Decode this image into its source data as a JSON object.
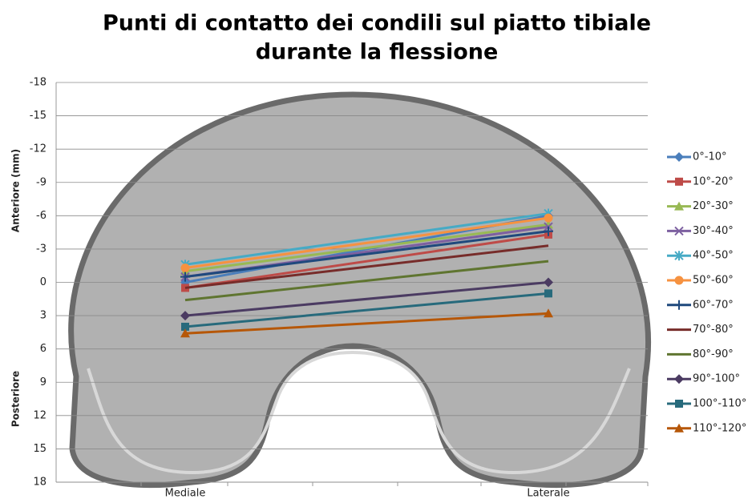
{
  "chart_data": {
    "type": "line",
    "title": [
      "Punti di contatto dei condili sul piatto tibiale",
      "durante la flessione"
    ],
    "y_label_upper": "Anteriore  (mm)",
    "y_label_lower": "Posteriore",
    "categories": [
      "Mediale",
      "Laterale"
    ],
    "ylim": [
      -18,
      18
    ],
    "y_inverted": true,
    "yticks": [
      -18,
      -15,
      -12,
      -9,
      -6,
      -3,
      0,
      3,
      6,
      9,
      12,
      15,
      18
    ],
    "grid": true,
    "legend": "right",
    "series": [
      {
        "name": "0°-10°",
        "color": "#4a7ebb",
        "marker": "diamond",
        "values": [
          0,
          -6
        ]
      },
      {
        "name": "10°-20°",
        "color": "#be4b48",
        "marker": "square",
        "values": [
          0.5,
          -4.3
        ]
      },
      {
        "name": "20°-30°",
        "color": "#98b954",
        "marker": "triangle",
        "values": [
          -1,
          -5.2
        ]
      },
      {
        "name": "30°-40°",
        "color": "#7d60a0",
        "marker": "x",
        "values": [
          -0.5,
          -5
        ]
      },
      {
        "name": "40°-50°",
        "color": "#46aac5",
        "marker": "star",
        "values": [
          -1.6,
          -6.2
        ]
      },
      {
        "name": "50°-60°",
        "color": "#f69240",
        "marker": "circle",
        "values": [
          -1.3,
          -5.8
        ]
      },
      {
        "name": "60°-70°",
        "color": "#1f497d",
        "marker": "plus",
        "values": [
          -0.5,
          -4.6
        ]
      },
      {
        "name": "70°-80°",
        "color": "#772c2a",
        "marker": "none",
        "values": [
          0.5,
          -3.3
        ]
      },
      {
        "name": "80°-90°",
        "color": "#5f7530",
        "marker": "none",
        "values": [
          1.6,
          -1.9
        ]
      },
      {
        "name": "90°-100°",
        "color": "#4b3b62",
        "marker": "diamond",
        "values": [
          3,
          0
        ]
      },
      {
        "name": "100°-110°",
        "color": "#276a7c",
        "marker": "square",
        "values": [
          4,
          1
        ]
      },
      {
        "name": "110°-120°",
        "color": "#b65708",
        "marker": "triangle",
        "values": [
          4.6,
          2.8
        ]
      }
    ]
  }
}
